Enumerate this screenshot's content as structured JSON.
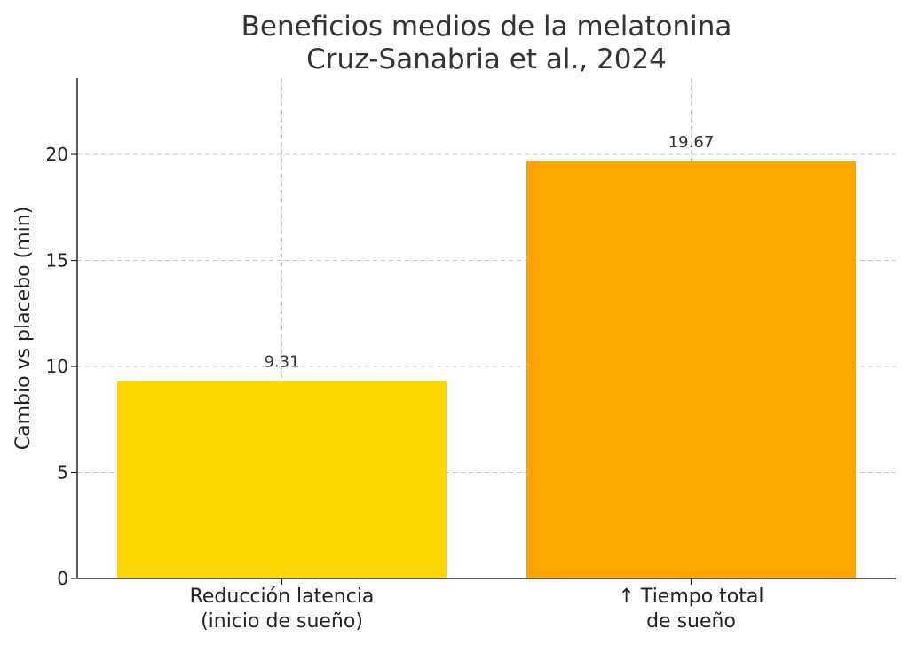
{
  "chart_data": {
    "type": "bar",
    "title_lines": [
      "Beneficios medios de la melatonina",
      "Cruz-Sanabria et al., 2024"
    ],
    "ylabel": "Cambio vs placebo (min)",
    "xlabel": "",
    "categories": [
      [
        "Reducción latencia",
        "(inicio de sueño)"
      ],
      [
        "↑ Tiempo total",
        "de sueño"
      ]
    ],
    "values": [
      9.31,
      19.67
    ],
    "value_labels": [
      "9.31",
      "19.67"
    ],
    "colors": [
      "#FFD700",
      "#FFA500"
    ],
    "ylim": [
      0,
      23.6
    ],
    "yticks": [
      0,
      5,
      10,
      15,
      20
    ],
    "grid": true
  }
}
